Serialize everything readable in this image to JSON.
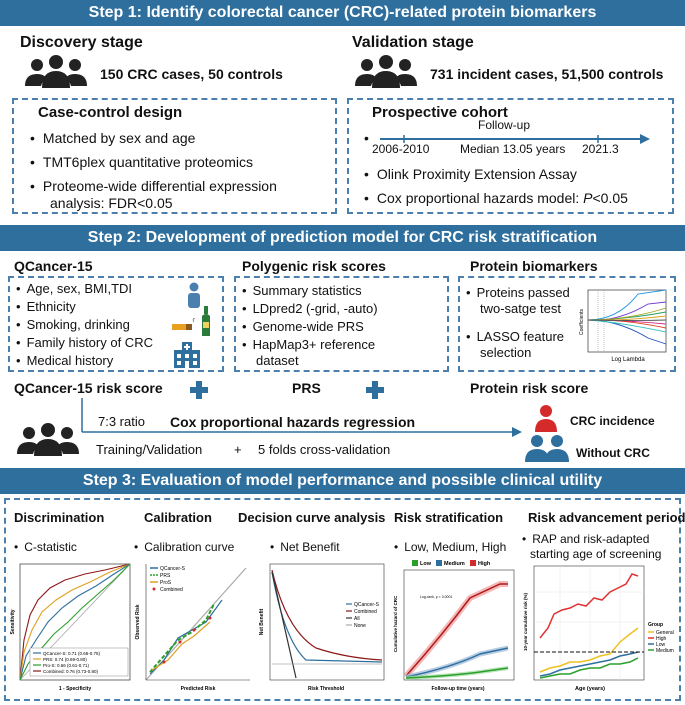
{
  "step1": {
    "title": "Step 1: Identify colorectal cancer (CRC)-related protein biomarkers",
    "discovery": {
      "heading": "Discovery stage",
      "cases": "150 CRC cases, 50 controls",
      "box_title": "Case-control design",
      "bullets": [
        "Matched by sex and age",
        "TMT6plex quantitative proteomics",
        "Proteome-wide differential expression",
        "analysis: FDR<0.05"
      ]
    },
    "validation": {
      "heading": "Validation stage",
      "cases": "731 incident cases, 51,500 controls",
      "box_title": "Prospective cohort",
      "followup": "Follow-up",
      "start": "2006-2010",
      "median": "Median 13.05 years",
      "end": "2021.3",
      "bullets": [
        "Olink Proximity Extension Assay",
        "Cox proportional hazards model: "
      ],
      "p_label": "P",
      "p_value": "<0.05"
    }
  },
  "step2": {
    "title": "Step 2: Development of prediction model for CRC risk stratification",
    "qcancer": {
      "heading": "QCancer-15",
      "bullets": [
        "Age, sex, BMI,TDI",
        "Ethnicity",
        "Smoking, drinking",
        "Family history of CRC",
        "Medical history"
      ],
      "score": "QCancer-15 risk score"
    },
    "prs": {
      "heading": "Polygenic risk scores",
      "bullets": [
        "Summary statistics",
        "LDpred2 (-grid, -auto)",
        "Genome-wide PRS",
        "HapMap3+ reference",
        "dataset"
      ],
      "score": "PRS"
    },
    "protein": {
      "heading": "Protein biomarkers",
      "bullets": [
        "Proteins passed",
        "two-satge test",
        "LASSO feature",
        "selection"
      ],
      "score": "Protein risk score",
      "lasso_xlabel": "Log Lambda",
      "lasso_ylabel": "Coefficients"
    },
    "ratio": "7:3 ratio",
    "cox": "Cox proportional hazards regression",
    "training": "Training/Validation",
    "plus": "+",
    "cv": "5 folds cross-validation",
    "incidence": "CRC incidence",
    "without": "Without CRC"
  },
  "step3": {
    "title": "Step 3: Evaluation of model performance and possible clinical utility",
    "panels": [
      {
        "title": "Discrimination",
        "bullet": "C-statistic"
      },
      {
        "title": "Calibration",
        "bullet": "Calibration curve"
      },
      {
        "title": "Decision curve analysis",
        "bullet": "Net Benefit"
      },
      {
        "title": "Risk stratification",
        "bullet": "Low, Medium, High"
      },
      {
        "title": "Risk advancement period",
        "bullet": "RAP and risk-adapted",
        "bullet2": "starting age of screening"
      }
    ],
    "roc": {
      "xlabel": "1 - Specificity",
      "ylabel": "Sensitivity",
      "legend": [
        "QCancer-S: 0.71 (0.66-0.75)",
        "PRS: 0.74 (0.69-0.80)",
        "Pro-S: 0.66 (0.61-0.71)",
        "Combined: 0.76 (0.73-0.80)"
      ]
    },
    "calibration": {
      "xlabel": "Predicted Risk",
      "ylabel": "Observed Risk",
      "legend": [
        "QCancer-S",
        "PRS",
        "ProS",
        "Combined"
      ]
    },
    "dca": {
      "xlabel": "Risk Threshold",
      "ylabel": "Net Benefit",
      "legend": [
        "QCancer-S",
        "Combined",
        "All",
        "None"
      ]
    },
    "km": {
      "legend": [
        "Low",
        "Medium",
        "High"
      ],
      "xlabel": "Follow-up time (years)",
      "ylabel": "Cumulative hazard of CRC",
      "annotation": "Log-rank, p < 0.0001"
    },
    "rap": {
      "xlabel": "Age (years)",
      "ylabel": "10-year cumulative risk (%)",
      "legend_title": "Group",
      "legend": [
        "General",
        "High",
        "Low",
        "Medium"
      ]
    }
  },
  "colors": {
    "banner": "#2e6f9e",
    "dash": "#4a7fae",
    "high": "#d42a2a",
    "medium": "#2e6f9e",
    "low": "#2aa02a",
    "general": "#f0c020"
  }
}
